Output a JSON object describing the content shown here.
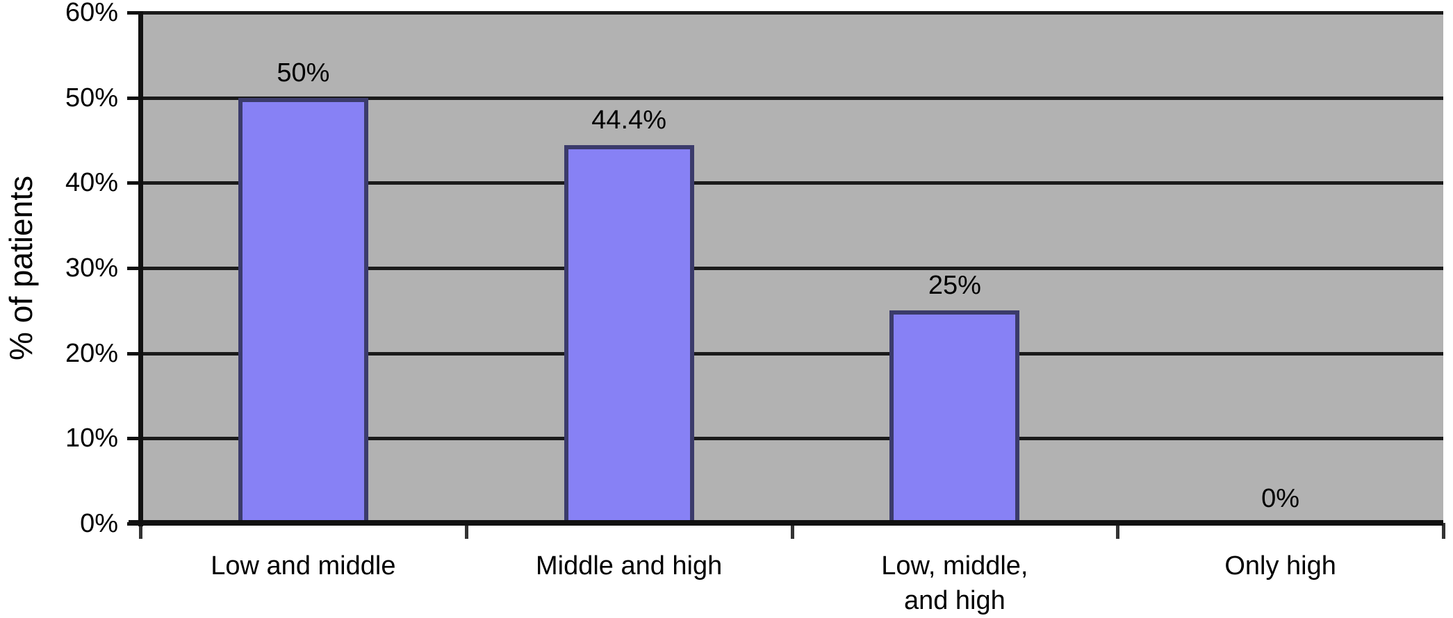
{
  "chart_data": {
    "type": "bar",
    "title": "",
    "xlabel": "",
    "ylabel": "% of patients",
    "categories": [
      "Low and middle",
      "Middle and high",
      "Low, middle,\nand high",
      "Only high"
    ],
    "values": [
      50,
      44.4,
      25,
      0
    ],
    "value_labels": [
      "50%",
      "44.4%",
      "25%",
      "0%"
    ],
    "y_ticks": [
      0,
      10,
      20,
      30,
      40,
      50,
      60
    ],
    "y_tick_labels": [
      "0%",
      "10%",
      "20%",
      "30%",
      "40%",
      "50%",
      "60%"
    ],
    "ylim": [
      0,
      60
    ],
    "grid": "horizontal-black-lines",
    "legend": "none",
    "colors": {
      "bar_fill": "#8781f5",
      "bar_border": "#3b3b6b",
      "plot_background": "#b2b2b2",
      "gridline": "#1a1a1a",
      "axis": "#111111",
      "text": "#000000",
      "page_background": "#ffffff"
    }
  }
}
